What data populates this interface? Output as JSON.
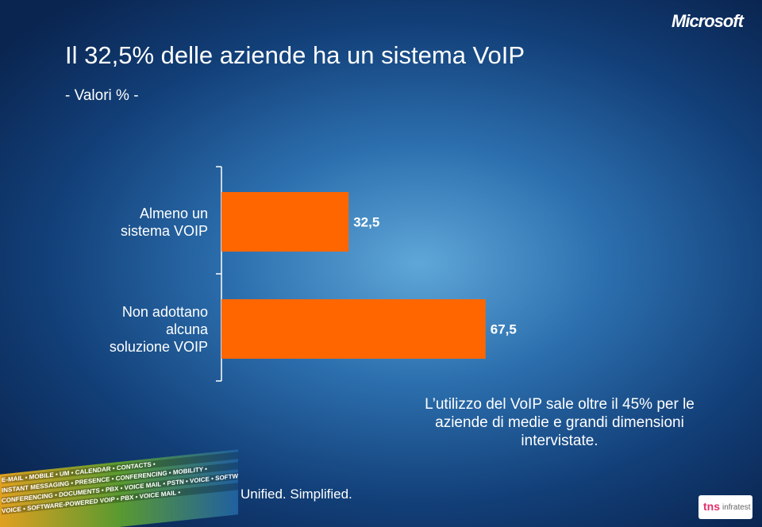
{
  "header": {
    "logo": "Microsoft"
  },
  "chart_data": {
    "type": "bar",
    "orientation": "horizontal",
    "title": "Il 32,5% delle aziende ha un sistema VoIP",
    "subtitle": "- Valori % -",
    "categories": [
      "Almeno un\nsistema VOIP",
      "Non adottano\nalcuna\nsoluzione VOIP"
    ],
    "values": [
      32.5,
      67.5
    ],
    "value_labels": [
      "32,5",
      "67,5"
    ],
    "color": "#ff6600",
    "annotation": "L’utilizzo del VoIP  sale oltre il 45% per le\naziende di medie  e grandi dimensioni\nintervistate."
  },
  "footer": {
    "band": [
      "E-MAIL • MOBILE • UM • CALENDAR • CONTACTS •",
      "INSTANT MESSAGING • PRESENCE • CONFERENCING • MOBILITY •",
      "CONFERENCING • DOCUMENTS • PBX • VOICE MAIL • PSTN • VOICE • SOFTWARE",
      "VOICE • SOFTWARE-POWERED VOIP • PBX • VOICE MAIL •"
    ],
    "tagline": "Unified. Simplified.",
    "partner_logo": "tns",
    "partner_name": "infratest"
  }
}
